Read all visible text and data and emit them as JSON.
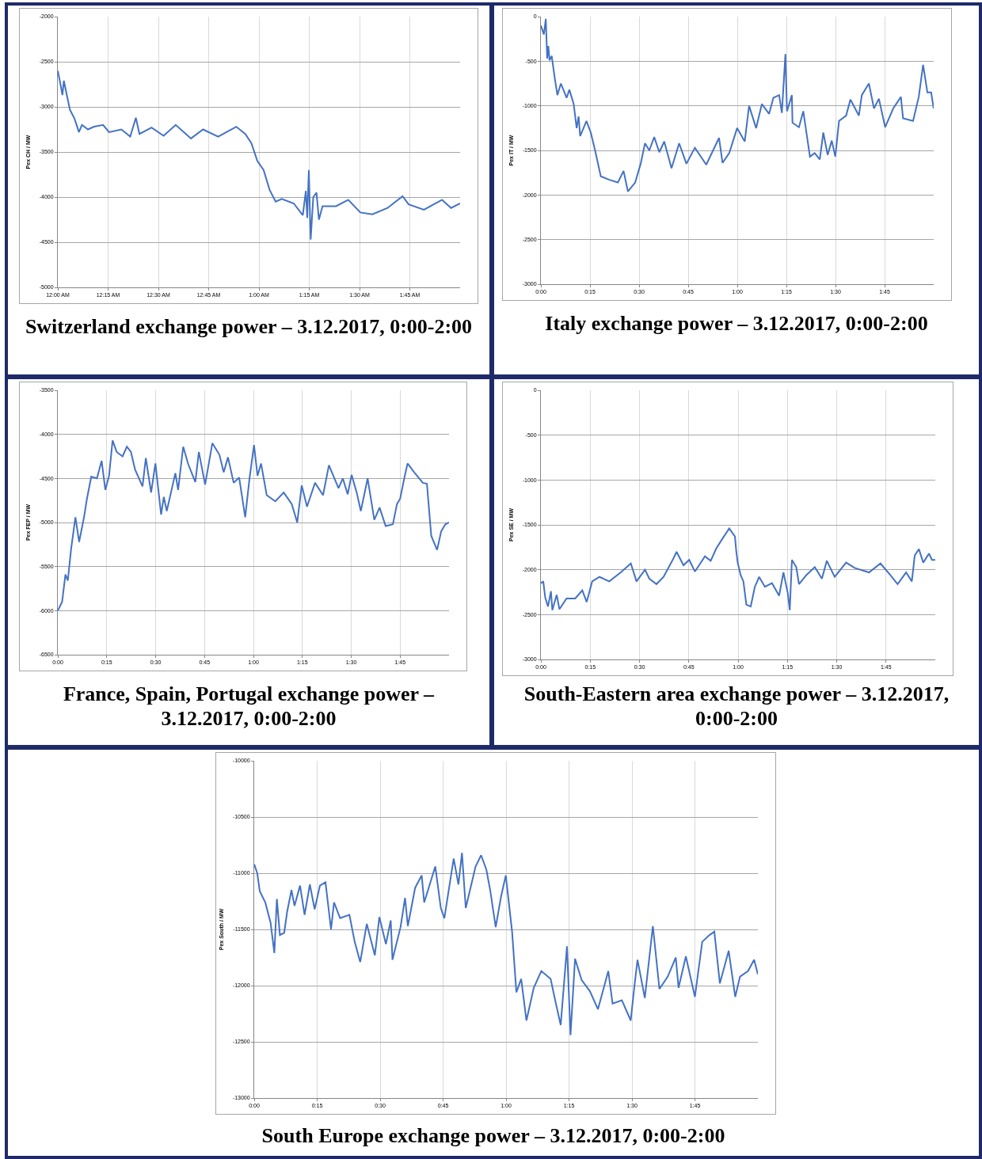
{
  "chart_data": [
    {
      "type": "line",
      "title": "Switzerland exchange power – 3.12.2017, 0:00-2:00",
      "ylabel": "Pex CH / MW",
      "color": "#4472c4",
      "grid": true,
      "xlim": [
        0,
        2
      ],
      "ylim": [
        -5000,
        -2000
      ],
      "yticks": [
        -5000,
        -4500,
        -4000,
        -3500,
        -3000,
        -2500,
        -2000
      ],
      "xticks": [
        {
          "value": 0,
          "label": "12:00 AM"
        },
        {
          "value": 0.25,
          "label": "12:15 AM"
        },
        {
          "value": 0.5,
          "label": "12:30 AM"
        },
        {
          "value": 0.75,
          "label": "12:45 AM"
        },
        {
          "value": 1,
          "label": "1:00 AM"
        },
        {
          "value": 1.25,
          "label": "1:15 AM"
        },
        {
          "value": 1.5,
          "label": "1:30 AM"
        },
        {
          "value": 1.75,
          "label": "1:45 AM"
        }
      ],
      "x": [
        0,
        0.015,
        0.023,
        0.03,
        0.045,
        0.06,
        0.083,
        0.105,
        0.12,
        0.15,
        0.18,
        0.225,
        0.255,
        0.316,
        0.36,
        0.388,
        0.406,
        0.466,
        0.526,
        0.586,
        0.662,
        0.722,
        0.797,
        0.887,
        0.932,
        0.962,
        0.992,
        1.023,
        1.053,
        1.083,
        1.113,
        1.173,
        1.218,
        1.233,
        1.24,
        1.248,
        1.257,
        1.27,
        1.286,
        1.298,
        1.316,
        1.383,
        1.444,
        1.504,
        1.564,
        1.639,
        1.714,
        1.744,
        1.82,
        1.91,
        1.955,
        2.0
      ],
      "values": [
        -2600,
        -2770,
        -2870,
        -2710,
        -2870,
        -3030,
        -3130,
        -3280,
        -3200,
        -3250,
        -3220,
        -3200,
        -3280,
        -3250,
        -3330,
        -3120,
        -3300,
        -3230,
        -3320,
        -3200,
        -3350,
        -3250,
        -3330,
        -3220,
        -3300,
        -3400,
        -3600,
        -3700,
        -3920,
        -4050,
        -4020,
        -4070,
        -4200,
        -3930,
        -4230,
        -3700,
        -4470,
        -4000,
        -3950,
        -4250,
        -4100,
        -4100,
        -4030,
        -4170,
        -4190,
        -4120,
        -3990,
        -4080,
        -4140,
        -4030,
        -4120,
        -4070
      ]
    },
    {
      "type": "line",
      "title": "Italy exchange power – 3.12.2017, 0:00-2:00",
      "ylabel": "Pex IT / MW",
      "color": "#4472c4",
      "grid": true,
      "xlim": [
        0,
        2
      ],
      "ylim": [
        -3000,
        0
      ],
      "yticks": [
        -3000,
        -2500,
        -2000,
        -1500,
        -1000,
        -500,
        0
      ],
      "xticks": [
        {
          "value": 0,
          "label": "0:00"
        },
        {
          "value": 0.25,
          "label": "0:15"
        },
        {
          "value": 0.5,
          "label": "0:30"
        },
        {
          "value": 0.75,
          "label": "0:45"
        },
        {
          "value": 1,
          "label": "1:00"
        },
        {
          "value": 1.25,
          "label": "1:15"
        },
        {
          "value": 1.5,
          "label": "1:30"
        },
        {
          "value": 1.75,
          "label": "1:45"
        }
      ],
      "x": [
        0,
        0.015,
        0.025,
        0.032,
        0.038,
        0.044,
        0.055,
        0.07,
        0.084,
        0.102,
        0.131,
        0.145,
        0.167,
        0.182,
        0.192,
        0.2,
        0.232,
        0.254,
        0.276,
        0.305,
        0.349,
        0.392,
        0.421,
        0.443,
        0.48,
        0.508,
        0.53,
        0.552,
        0.577,
        0.603,
        0.628,
        0.665,
        0.704,
        0.741,
        0.784,
        0.842,
        0.907,
        0.925,
        0.959,
        0.999,
        1.038,
        1.06,
        1.096,
        1.125,
        1.162,
        1.184,
        1.213,
        1.227,
        1.245,
        1.253,
        1.278,
        1.281,
        1.314,
        1.336,
        1.37,
        1.394,
        1.42,
        1.438,
        1.46,
        1.481,
        1.499,
        1.518,
        1.554,
        1.576,
        1.619,
        1.634,
        1.67,
        1.696,
        1.721,
        1.753,
        1.794,
        1.833,
        1.844,
        1.895,
        1.924,
        1.946,
        1.968,
        1.987,
        2.0
      ],
      "values": [
        -100,
        -200,
        -25,
        -470,
        -330,
        -490,
        -440,
        -680,
        -880,
        -750,
        -910,
        -820,
        -980,
        -1250,
        -1120,
        -1340,
        -1170,
        -1300,
        -1500,
        -1790,
        -1830,
        -1860,
        -1730,
        -1960,
        -1860,
        -1650,
        -1420,
        -1500,
        -1350,
        -1520,
        -1400,
        -1700,
        -1420,
        -1650,
        -1470,
        -1660,
        -1360,
        -1640,
        -1530,
        -1250,
        -1400,
        -1000,
        -1250,
        -980,
        -1090,
        -910,
        -880,
        -1080,
        -420,
        -1060,
        -880,
        -1190,
        -1240,
        -1060,
        -1570,
        -1530,
        -1600,
        -1300,
        -1550,
        -1390,
        -1570,
        -1170,
        -1110,
        -930,
        -1110,
        -880,
        -750,
        -1030,
        -920,
        -1240,
        -1030,
        -900,
        -1140,
        -1170,
        -900,
        -540,
        -850,
        -850,
        -1030
      ]
    },
    {
      "type": "line",
      "title": "France, Spain, Portugal exchange power – 3.12.2017, 0:00-2:00",
      "ylabel": "Pex FEP / MW",
      "color": "#4472c4",
      "grid": true,
      "xlim": [
        0,
        2
      ],
      "ylim": [
        -6500,
        -3500
      ],
      "yticks": [
        -6500,
        -6000,
        -5500,
        -5000,
        -4500,
        -4000,
        -3500
      ],
      "xticks": [
        {
          "value": 0,
          "label": "0:00"
        },
        {
          "value": 0.25,
          "label": "0:15"
        },
        {
          "value": 0.5,
          "label": "0:30"
        },
        {
          "value": 0.75,
          "label": "0:45"
        },
        {
          "value": 1,
          "label": "1:00"
        },
        {
          "value": 1.25,
          "label": "1:15"
        },
        {
          "value": 1.5,
          "label": "1:30"
        },
        {
          "value": 1.75,
          "label": "1:45"
        }
      ],
      "x": [
        0,
        0.022,
        0.039,
        0.051,
        0.068,
        0.09,
        0.109,
        0.134,
        0.149,
        0.171,
        0.2,
        0.224,
        0.243,
        0.262,
        0.28,
        0.301,
        0.331,
        0.353,
        0.374,
        0.395,
        0.433,
        0.45,
        0.477,
        0.499,
        0.528,
        0.542,
        0.557,
        0.601,
        0.615,
        0.641,
        0.667,
        0.703,
        0.721,
        0.753,
        0.79,
        0.826,
        0.848,
        0.87,
        0.899,
        0.927,
        0.958,
        0.98,
        1.003,
        1.021,
        1.039,
        1.068,
        1.112,
        1.155,
        1.196,
        1.224,
        1.247,
        1.274,
        1.315,
        1.356,
        1.386,
        1.435,
        1.457,
        1.482,
        1.502,
        1.528,
        1.549,
        1.584,
        1.618,
        1.645,
        1.676,
        1.713,
        1.734,
        1.75,
        1.771,
        1.788,
        1.822,
        1.866,
        1.887,
        1.909,
        1.939,
        1.96,
        1.981,
        2.0
      ],
      "values": [
        -6000,
        -5900,
        -5590,
        -5660,
        -5300,
        -4940,
        -5220,
        -4940,
        -4730,
        -4480,
        -4500,
        -4300,
        -4630,
        -4470,
        -4070,
        -4200,
        -4250,
        -4140,
        -4200,
        -4400,
        -4590,
        -4270,
        -4660,
        -4330,
        -4910,
        -4710,
        -4870,
        -4440,
        -4630,
        -4140,
        -4340,
        -4540,
        -4200,
        -4570,
        -4100,
        -4230,
        -4430,
        -4260,
        -4550,
        -4490,
        -4940,
        -4500,
        -4120,
        -4470,
        -4330,
        -4690,
        -4760,
        -4660,
        -4790,
        -5000,
        -4580,
        -4820,
        -4550,
        -4690,
        -4350,
        -4610,
        -4500,
        -4680,
        -4460,
        -4660,
        -4870,
        -4500,
        -4970,
        -4830,
        -5040,
        -5020,
        -4790,
        -4730,
        -4500,
        -4330,
        -4430,
        -4550,
        -4560,
        -5150,
        -5310,
        -5100,
        -5020,
        -5000
      ]
    },
    {
      "type": "line",
      "title": "South-Eastern area exchange power – 3.12.2017, 0:00-2:00",
      "ylabel": "Pex SE / MW",
      "color": "#4472c4",
      "grid": true,
      "xlim": [
        0,
        2
      ],
      "ylim": [
        -3000,
        0
      ],
      "yticks": [
        -3000,
        -2500,
        -2000,
        -1500,
        -1000,
        -500,
        0
      ],
      "xticks": [
        {
          "value": 0,
          "label": "0:00"
        },
        {
          "value": 0.25,
          "label": "0:15"
        },
        {
          "value": 0.5,
          "label": "0:30"
        },
        {
          "value": 0.75,
          "label": "0:45"
        },
        {
          "value": 1,
          "label": "1:00"
        },
        {
          "value": 1.25,
          "label": "1:15"
        },
        {
          "value": 1.5,
          "label": "1:30"
        },
        {
          "value": 1.75,
          "label": "1:45"
        }
      ],
      "x": [
        0,
        0.012,
        0.022,
        0.036,
        0.051,
        0.058,
        0.08,
        0.094,
        0.13,
        0.174,
        0.21,
        0.232,
        0.26,
        0.297,
        0.347,
        0.405,
        0.456,
        0.485,
        0.528,
        0.55,
        0.586,
        0.622,
        0.673,
        0.688,
        0.723,
        0.752,
        0.781,
        0.832,
        0.861,
        0.89,
        0.919,
        0.955,
        0.984,
        0.991,
        0.998,
        1.013,
        1.027,
        1.042,
        1.064,
        1.085,
        1.107,
        1.136,
        1.172,
        1.208,
        1.23,
        1.252,
        1.262,
        1.273,
        1.295,
        1.309,
        1.346,
        1.389,
        1.425,
        1.45,
        1.49,
        1.548,
        1.591,
        1.664,
        1.722,
        1.772,
        1.809,
        1.852,
        1.881,
        1.896,
        1.917,
        1.939,
        1.968,
        1.983,
        2.0
      ],
      "values": [
        -2150,
        -2130,
        -2310,
        -2410,
        -2240,
        -2450,
        -2280,
        -2440,
        -2320,
        -2320,
        -2230,
        -2360,
        -2130,
        -2080,
        -2130,
        -2030,
        -1930,
        -2130,
        -2000,
        -2100,
        -2160,
        -2080,
        -1870,
        -1800,
        -1950,
        -1890,
        -2020,
        -1850,
        -1900,
        -1760,
        -1660,
        -1540,
        -1630,
        -1800,
        -1920,
        -2060,
        -2130,
        -2390,
        -2410,
        -2190,
        -2080,
        -2190,
        -2150,
        -2290,
        -2030,
        -2260,
        -2450,
        -1890,
        -1970,
        -2160,
        -2060,
        -1970,
        -2100,
        -1900,
        -2080,
        -1920,
        -1980,
        -2030,
        -1930,
        -2060,
        -2160,
        -2030,
        -2130,
        -1840,
        -1770,
        -1920,
        -1820,
        -1890,
        -1890
      ]
    },
    {
      "type": "line",
      "title": "South Europe exchange power – 3.12.2017, 0:00-2:00",
      "ylabel": "Pex South / MW",
      "color": "#4472c4",
      "grid": true,
      "xlim": [
        0,
        2
      ],
      "ylim": [
        -13000,
        -10000
      ],
      "yticks": [
        -13000,
        -12500,
        -12000,
        -11500,
        -11000,
        -10500,
        -10000
      ],
      "xticks": [
        {
          "value": 0,
          "label": "0:00"
        },
        {
          "value": 0.25,
          "label": "0:15"
        },
        {
          "value": 0.5,
          "label": "0:30"
        },
        {
          "value": 0.75,
          "label": "0:45"
        },
        {
          "value": 1,
          "label": "1:00"
        },
        {
          "value": 1.25,
          "label": "1:15"
        },
        {
          "value": 1.5,
          "label": "1:30"
        },
        {
          "value": 1.75,
          "label": "1:45"
        }
      ],
      "x": [
        0,
        0.012,
        0.022,
        0.044,
        0.065,
        0.08,
        0.09,
        0.102,
        0.119,
        0.131,
        0.148,
        0.16,
        0.182,
        0.2,
        0.221,
        0.24,
        0.261,
        0.283,
        0.305,
        0.317,
        0.341,
        0.378,
        0.399,
        0.421,
        0.447,
        0.479,
        0.497,
        0.523,
        0.542,
        0.549,
        0.581,
        0.599,
        0.61,
        0.639,
        0.665,
        0.675,
        0.719,
        0.741,
        0.755,
        0.792,
        0.811,
        0.825,
        0.84,
        0.879,
        0.901,
        0.922,
        0.937,
        0.959,
        0.98,
        0.999,
        1.024,
        1.041,
        1.06,
        1.081,
        1.11,
        1.14,
        1.177,
        1.198,
        1.217,
        1.242,
        1.256,
        1.274,
        1.3,
        1.333,
        1.365,
        1.406,
        1.423,
        1.46,
        1.495,
        1.51,
        1.522,
        1.551,
        1.583,
        1.609,
        1.642,
        1.674,
        1.685,
        1.714,
        1.75,
        1.779,
        1.808,
        1.827,
        1.849,
        1.884,
        1.91,
        1.929,
        1.961,
        1.985,
        2.0
      ],
      "values": [
        -10920,
        -11000,
        -11160,
        -11260,
        -11440,
        -11710,
        -11230,
        -11550,
        -11530,
        -11340,
        -11150,
        -11290,
        -11110,
        -11370,
        -11100,
        -11320,
        -11110,
        -11080,
        -11500,
        -11260,
        -11400,
        -11370,
        -11610,
        -11790,
        -11450,
        -11730,
        -11390,
        -11630,
        -11420,
        -11770,
        -11480,
        -11220,
        -11470,
        -11130,
        -11020,
        -11260,
        -10940,
        -11310,
        -11400,
        -10870,
        -11100,
        -10820,
        -11310,
        -10940,
        -10840,
        -10970,
        -11150,
        -11480,
        -11210,
        -11020,
        -11520,
        -12060,
        -11940,
        -12310,
        -12020,
        -11870,
        -11940,
        -12160,
        -12350,
        -11650,
        -12440,
        -11760,
        -11950,
        -12050,
        -12210,
        -11870,
        -12160,
        -12130,
        -12310,
        -12000,
        -11770,
        -12110,
        -11470,
        -12030,
        -11920,
        -11750,
        -12020,
        -11740,
        -12100,
        -11610,
        -11550,
        -11520,
        -11980,
        -11690,
        -12100,
        -11920,
        -11870,
        -11770,
        -11900
      ]
    }
  ]
}
